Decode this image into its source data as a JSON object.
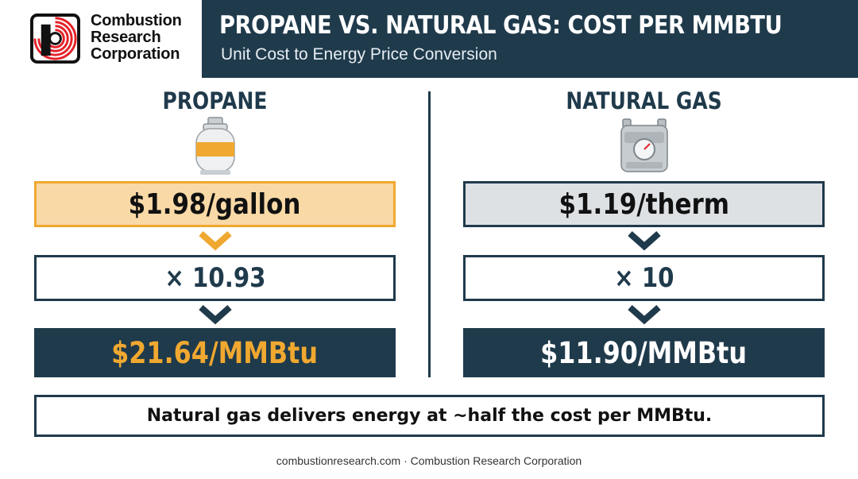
{
  "brand": {
    "name": "Combustion\nResearch\nCorporation",
    "accent": "#e42229"
  },
  "header": {
    "title": "PROPANE VS. NATURAL GAS: COST PER MMBTU",
    "subtitle": "Unit Cost to Energy Price Conversion",
    "background": "#1f3a4b"
  },
  "columns": [
    {
      "heading": "PROPANE",
      "icon": "propane-tank-icon",
      "unit_price": "$1.98/gallon",
      "factor": "× 10.93",
      "result": "$21.64/MMBtu",
      "accent": "#f0a830"
    },
    {
      "heading": "NATURAL GAS",
      "icon": "gas-meter-icon",
      "unit_price": "$1.19/therm",
      "factor": "× 10",
      "result": "$11.90/MMBtu",
      "accent": "#1f3a4b"
    }
  ],
  "summary": "Natural gas delivers energy at ~half the cost per MMBtu.",
  "footer": "combustionresearch.com · Combustion Research Corporation"
}
